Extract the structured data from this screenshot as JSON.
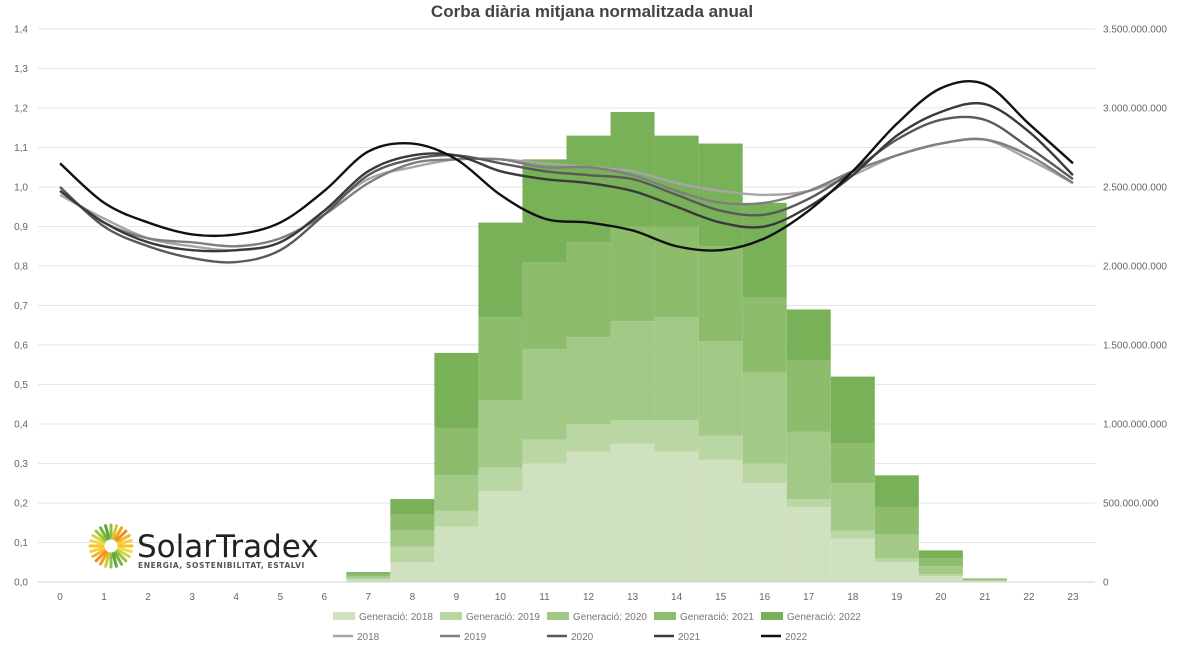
{
  "chart_data": {
    "type": "bar",
    "stacked": true,
    "title": "Corba diària mitjana normalitzada anual",
    "categories": [
      "0",
      "1",
      "2",
      "3",
      "4",
      "5",
      "6",
      "7",
      "8",
      "9",
      "10",
      "11",
      "12",
      "13",
      "14",
      "15",
      "16",
      "17",
      "18",
      "19",
      "20",
      "21",
      "22",
      "23"
    ],
    "y_left": {
      "min": 0,
      "max": 1.4,
      "ticks": [
        "0,0",
        "0,1",
        "0,2",
        "0,3",
        "0,4",
        "0,5",
        "0,6",
        "0,7",
        "0,8",
        "0,9",
        "1,0",
        "1,1",
        "1,2",
        "1,3",
        "1,4"
      ]
    },
    "y_right": {
      "min": 0,
      "max": 3500000000,
      "ticks": [
        "0",
        "500.000.000",
        "1.000.000.000",
        "1.500.000.000",
        "2.000.000.000",
        "2.500.000.000",
        "3.000.000.000",
        "3.500.000.000"
      ]
    },
    "bar_series": [
      {
        "name": "Generació: 2018",
        "color": "#cfe1bf",
        "values": [
          0,
          0,
          0,
          0,
          0,
          0,
          0,
          0.005,
          0.05,
          0.14,
          0.23,
          0.3,
          0.33,
          0.35,
          0.33,
          0.31,
          0.25,
          0.19,
          0.11,
          0.05,
          0.015,
          0.002,
          0,
          0
        ]
      },
      {
        "name": "Generació: 2019",
        "color": "#b9d6a3",
        "values": [
          0,
          0,
          0,
          0,
          0,
          0,
          0,
          0.005,
          0.04,
          0.04,
          0.06,
          0.06,
          0.07,
          0.06,
          0.08,
          0.06,
          0.05,
          0.02,
          0.02,
          0.01,
          0.005,
          0.001,
          0,
          0
        ]
      },
      {
        "name": "Generació: 2020",
        "color": "#a3c986",
        "values": [
          0,
          0,
          0,
          0,
          0,
          0,
          0,
          0.005,
          0.04,
          0.09,
          0.17,
          0.23,
          0.22,
          0.25,
          0.26,
          0.24,
          0.23,
          0.17,
          0.12,
          0.06,
          0.02,
          0.002,
          0,
          0
        ]
      },
      {
        "name": "Generació: 2021",
        "color": "#8dbd6c",
        "values": [
          0,
          0,
          0,
          0,
          0,
          0,
          0,
          0.005,
          0.04,
          0.12,
          0.21,
          0.22,
          0.24,
          0.24,
          0.23,
          0.24,
          0.19,
          0.18,
          0.1,
          0.07,
          0.02,
          0.002,
          0,
          0
        ]
      },
      {
        "name": "Generació: 2022",
        "color": "#79b159",
        "values": [
          0,
          0,
          0,
          0,
          0,
          0,
          0,
          0.005,
          0.04,
          0.19,
          0.24,
          0.26,
          0.27,
          0.29,
          0.23,
          0.26,
          0.24,
          0.13,
          0.17,
          0.08,
          0.02,
          0.002,
          0,
          0
        ]
      }
    ],
    "line_series": [
      {
        "name": "2018",
        "color": "#a6a6a6",
        "values": [
          0.98,
          0.92,
          0.87,
          0.85,
          0.84,
          0.86,
          0.94,
          1.02,
          1.05,
          1.07,
          1.07,
          1.06,
          1.05,
          1.04,
          1.01,
          0.99,
          0.98,
          0.99,
          1.03,
          1.08,
          1.11,
          1.12,
          1.07,
          1.01
        ]
      },
      {
        "name": "2019",
        "color": "#7f7f7f",
        "values": [
          0.99,
          0.91,
          0.87,
          0.86,
          0.85,
          0.87,
          0.93,
          1.01,
          1.06,
          1.07,
          1.07,
          1.05,
          1.05,
          1.03,
          0.99,
          0.96,
          0.96,
          0.99,
          1.04,
          1.08,
          1.11,
          1.12,
          1.08,
          1.01
        ]
      },
      {
        "name": "2020",
        "color": "#595959",
        "values": [
          1.0,
          0.9,
          0.85,
          0.82,
          0.81,
          0.84,
          0.93,
          1.03,
          1.07,
          1.08,
          1.06,
          1.04,
          1.03,
          1.02,
          0.98,
          0.94,
          0.93,
          0.97,
          1.04,
          1.12,
          1.17,
          1.17,
          1.1,
          1.02
        ]
      },
      {
        "name": "2021",
        "color": "#3a3a3a",
        "values": [
          0.99,
          0.91,
          0.86,
          0.84,
          0.84,
          0.86,
          0.94,
          1.04,
          1.08,
          1.08,
          1.04,
          1.02,
          1.01,
          0.99,
          0.95,
          0.91,
          0.9,
          0.95,
          1.03,
          1.13,
          1.19,
          1.21,
          1.14,
          1.03
        ]
      },
      {
        "name": "2022",
        "color": "#111111",
        "values": [
          1.06,
          0.96,
          0.91,
          0.88,
          0.88,
          0.91,
          0.99,
          1.09,
          1.11,
          1.07,
          0.98,
          0.92,
          0.91,
          0.89,
          0.85,
          0.84,
          0.87,
          0.94,
          1.04,
          1.16,
          1.25,
          1.26,
          1.16,
          1.06
        ]
      }
    ]
  },
  "logo": {
    "name": "SolarTradex",
    "tagline": "ENERGIA, SOSTENIBILITAT, ESTALVI"
  }
}
